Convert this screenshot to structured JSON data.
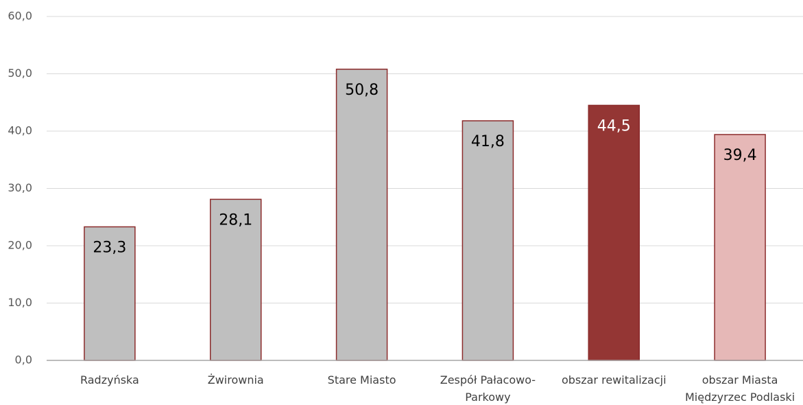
{
  "chart_data": {
    "type": "bar",
    "categories": [
      "Radzyńska",
      "Żwirownia",
      "Stare Miasto",
      "Zespół Pałacowo-\nParkowy",
      "obszar rewitalizacji",
      "obszar Miasta\nMiędzyrzec Podlaski"
    ],
    "values": [
      23.3,
      28.1,
      50.8,
      41.8,
      44.5,
      39.4
    ],
    "value_labels": [
      "23,3",
      "28,1",
      "50,8",
      "41,8",
      "44,5",
      "39,4"
    ],
    "colors": [
      "#bfbfbf",
      "#bfbfbf",
      "#bfbfbf",
      "#bfbfbf",
      "#943634",
      "#e6b8b7"
    ],
    "border_color": "#8b2b2b",
    "label_colors": [
      "#000000",
      "#000000",
      "#000000",
      "#000000",
      "#ffffff",
      "#000000"
    ],
    "ylim": [
      0,
      60
    ],
    "yticks": [
      {
        "value": 0,
        "label": "0,0"
      },
      {
        "value": 10,
        "label": "10,0"
      },
      {
        "value": 20,
        "label": "20,0"
      },
      {
        "value": 30,
        "label": "30,0"
      },
      {
        "value": 40,
        "label": "40,0"
      },
      {
        "value": 50,
        "label": "50,0"
      },
      {
        "value": 60,
        "label": "60,0"
      }
    ],
    "grid": true
  }
}
